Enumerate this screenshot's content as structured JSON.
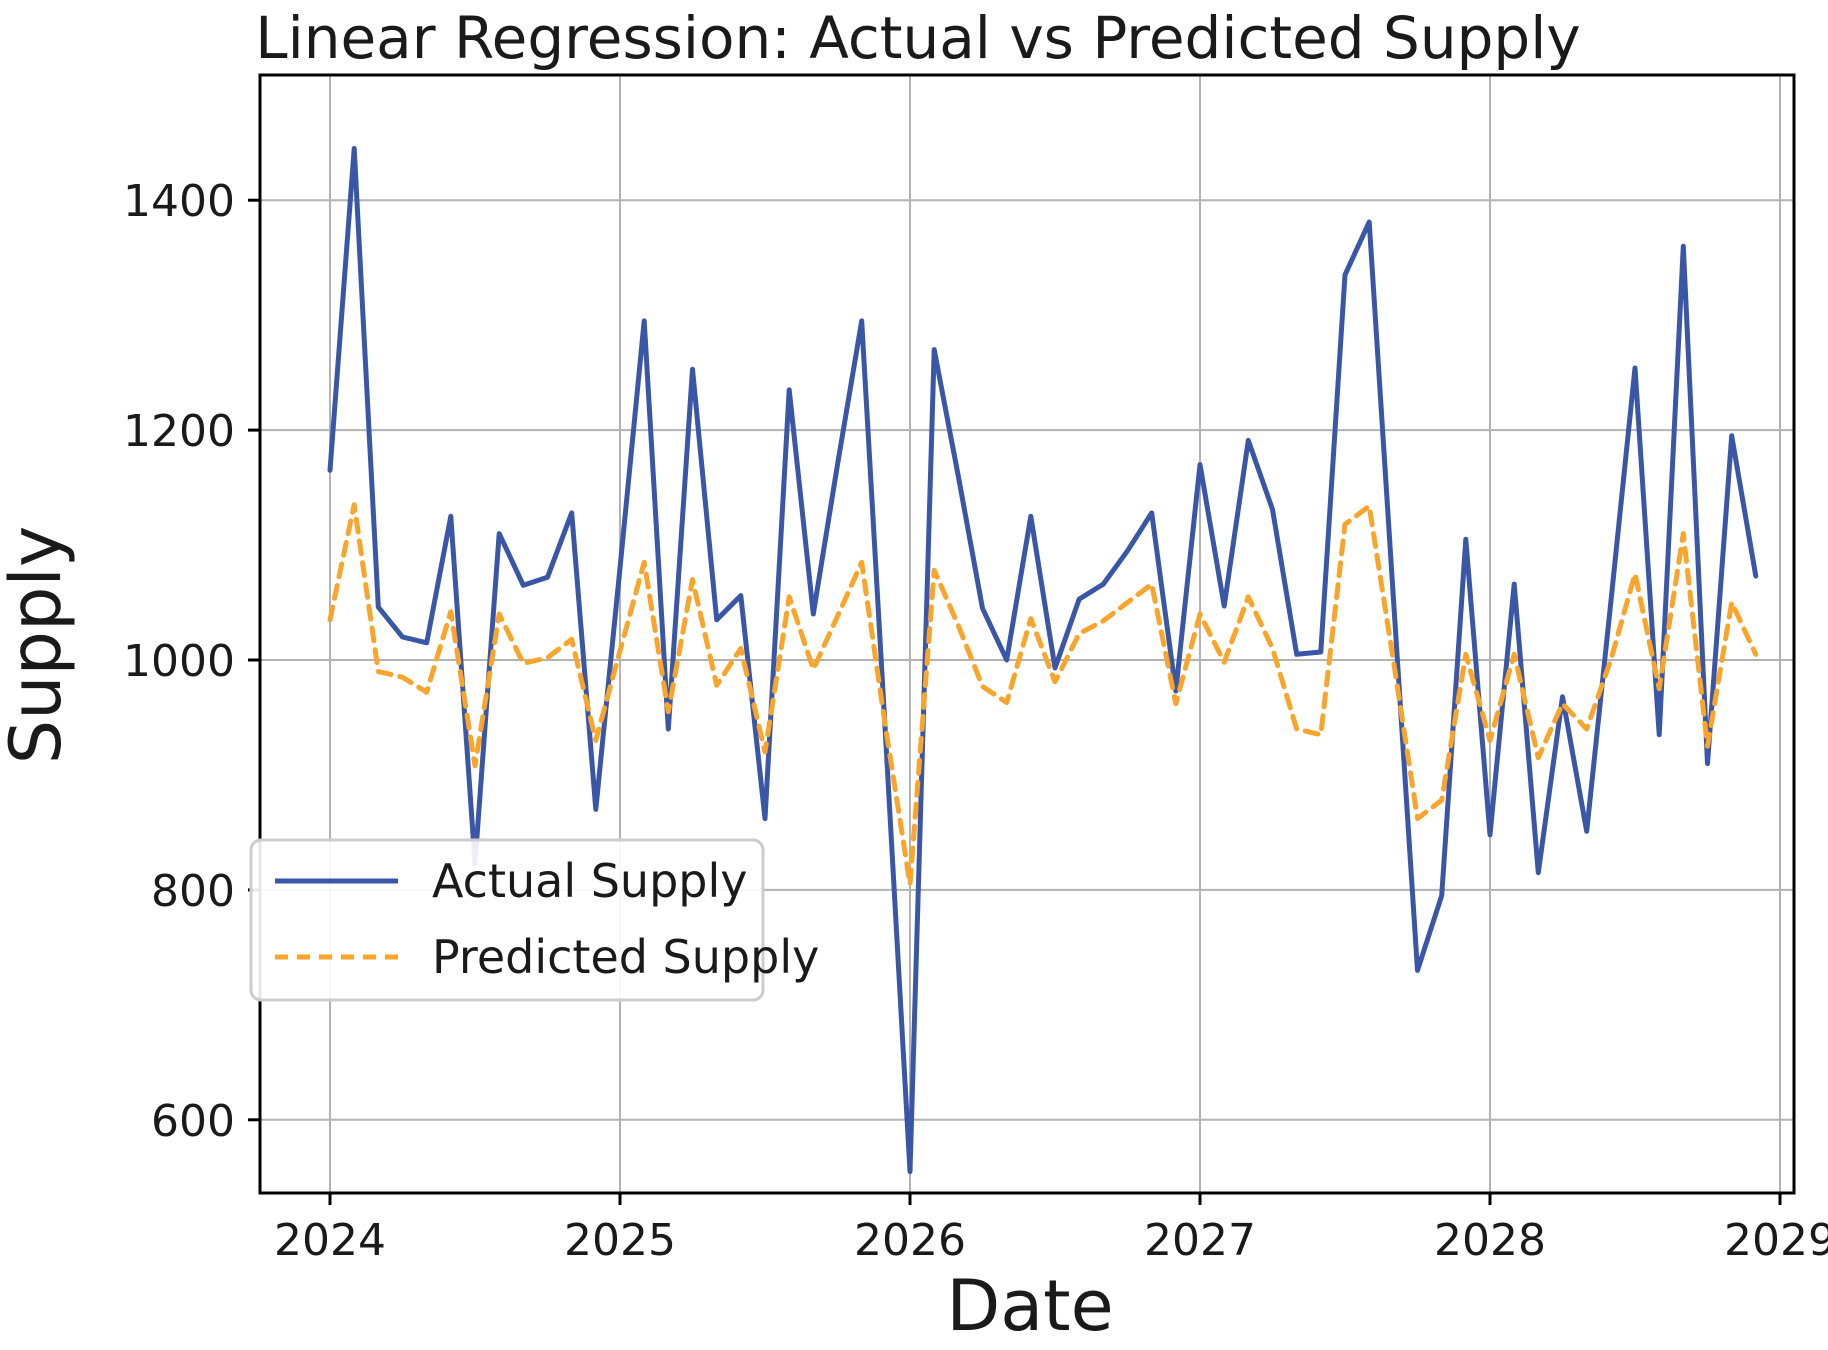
{
  "title": "Linear Regression: Actual vs Predicted Supply",
  "x_axis_label": "Date",
  "y_axis_label": "Supply",
  "legend": {
    "items": [
      {
        "label": "Actual Supply",
        "color": "#3A57A7",
        "dash": "none"
      },
      {
        "label": "Predicted Supply",
        "color": "#F9A42A",
        "dash": "13 9"
      }
    ]
  },
  "colors": {
    "actual_line": "#3A57A7",
    "predicted_line": "#F9A42A",
    "gridline": "#b3b3b3",
    "spine": "#000000",
    "text": "#1a1a1a",
    "legend_border": "#cccccc",
    "background": "#ffffff"
  },
  "chart_data": {
    "type": "line",
    "title": "Linear Regression: Actual vs Predicted Supply",
    "xlabel": "Date",
    "ylabel": "Supply",
    "x_tick_labels": [
      "2024",
      "2025",
      "2026",
      "2027",
      "2028",
      "2029"
    ],
    "y_tick_labels": [
      "600",
      "800",
      "1000",
      "1200",
      "1400"
    ],
    "y_ticks": [
      600,
      800,
      1000,
      1200,
      1400
    ],
    "x_start_year": 2024,
    "points_per_year": 12,
    "x_months": 60,
    "ylim": [
      536,
      1508
    ],
    "xlim_years": [
      2023.76,
      2029.17
    ],
    "grid": true,
    "legend_position": "lower left",
    "series": [
      {
        "name": "Actual Supply",
        "values": [
          1165,
          1445,
          1046,
          1020,
          1015,
          1125,
          823,
          1110,
          1065,
          1072,
          1128,
          870,
          1080,
          1295,
          940,
          1253,
          1035,
          1056,
          862,
          1235,
          1040,
          1170,
          1295,
          930,
          555,
          1270,
          1160,
          1045,
          1000,
          1125,
          993,
          1053,
          1066,
          1095,
          1128,
          973,
          1170,
          1047,
          1191,
          1131,
          1005,
          1007,
          1335,
          1381,
          1055,
          730,
          795,
          1105,
          848,
          1066,
          815,
          968,
          851,
          1050,
          1254,
          935,
          1360,
          910,
          1195,
          1073
        ]
      },
      {
        "name": "Predicted Supply",
        "values": [
          1035,
          1135,
          990,
          985,
          972,
          1042,
          908,
          1040,
          997,
          1002,
          1018,
          930,
          1008,
          1085,
          955,
          1070,
          978,
          1010,
          920,
          1055,
          992,
          1038,
          1085,
          940,
          805,
          1078,
          1030,
          977,
          963,
          1036,
          981,
          1023,
          1034,
          1050,
          1066,
          962,
          1040,
          998,
          1055,
          1010,
          940,
          935,
          1118,
          1134,
          1000,
          862,
          878,
          1005,
          930,
          1005,
          915,
          962,
          940,
          1000,
          1075,
          975,
          1110,
          925,
          1050,
          1005
        ]
      }
    ]
  }
}
